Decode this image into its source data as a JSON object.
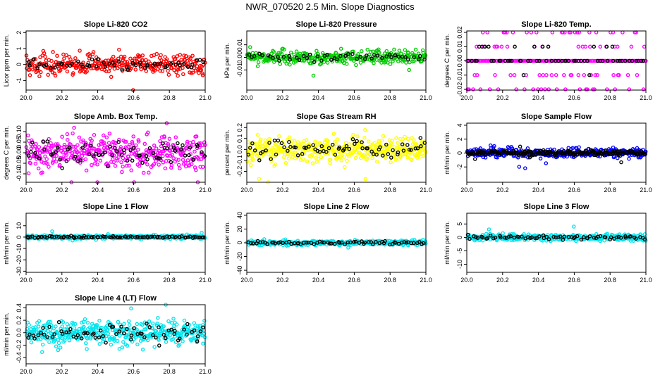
{
  "page_title": "NWR_070520  2.5 Min. Slope Diagnostics",
  "chart_data": [
    {
      "type": "scatter",
      "title": "Slope Li-820 CO2",
      "ylabel": "Licor ppm per min.",
      "xlim": [
        20.0,
        21.0
      ],
      "ylim": [
        -1.6,
        2.1
      ],
      "xticks": [
        "20.0",
        "20.2",
        "20.4",
        "20.6",
        "20.8",
        "21.0"
      ],
      "yticks": [
        "-1",
        "0",
        "1",
        "2"
      ],
      "series": [
        {
          "name": "all",
          "color": "#ff0000",
          "n": 330,
          "spread": 0.45
        },
        {
          "name": "selected",
          "color": "#000000",
          "n": 55,
          "spread": 0.22
        }
      ]
    },
    {
      "type": "scatter",
      "title": "Slope Li-820 Pressure",
      "ylabel": "kPa per min.",
      "xlim": [
        20.0,
        21.0
      ],
      "ylim": [
        -0.026,
        0.021
      ],
      "xticks": [
        "20.0",
        "20.2",
        "20.4",
        "20.6",
        "20.8",
        "21.0"
      ],
      "yticks": [
        "-0.01",
        "0.00",
        "0.01"
      ],
      "series": [
        {
          "name": "all",
          "color": "#00cc00",
          "n": 330,
          "spread": 0.0035
        },
        {
          "name": "selected",
          "color": "#000000",
          "n": 50,
          "spread": 0.0025
        }
      ]
    },
    {
      "type": "scatter",
      "title": "Slope Li-820 Temp.",
      "ylabel": "degrees C per min.",
      "xlim": [
        20.0,
        21.0
      ],
      "ylim": [
        -0.0205,
        0.021
      ],
      "xticks": [
        "20.0",
        "20.2",
        "20.4",
        "20.6",
        "20.8",
        "21.0"
      ],
      "yticks": [
        "-0.02",
        "-0.01",
        "0.00",
        "0.01",
        "0.02"
      ],
      "series": [
        {
          "name": "all",
          "color": "#ff00ff",
          "n": 300,
          "spread": 0.0,
          "levels": [
            -0.02,
            -0.01,
            0.0,
            0.01,
            0.02
          ]
        },
        {
          "name": "selected",
          "color": "#000000",
          "n": 60,
          "spread": 0.0,
          "levels": [
            -0.01,
            0.0,
            0.01
          ]
        }
      ]
    },
    {
      "type": "scatter",
      "title": "Slope Amb. Box Temp.",
      "ylabel": "degrees C per min.",
      "xlim": [
        20.0,
        21.0
      ],
      "ylim": [
        -0.14,
        0.14
      ],
      "xticks": [
        "20.0",
        "20.2",
        "20.4",
        "20.6",
        "20.8",
        "21.0"
      ],
      "yticks": [
        "-0.10",
        "-0.05",
        "0.00",
        "0.05",
        "0.10"
      ],
      "series": [
        {
          "name": "all",
          "color": "#ff00ff",
          "n": 420,
          "spread": 0.055
        },
        {
          "name": "selected",
          "color": "#000000",
          "n": 70,
          "spread": 0.04
        }
      ]
    },
    {
      "type": "scatter",
      "title": "Slope Gas Stream RH",
      "ylabel": "percent per min.",
      "xlim": [
        20.0,
        21.0
      ],
      "ylim": [
        -0.3,
        0.24
      ],
      "xticks": [
        "20.0",
        "20.2",
        "20.4",
        "20.6",
        "20.8",
        "21.0"
      ],
      "yticks": [
        "-0.2",
        "-0.1",
        "0.0",
        "0.1",
        "0.2"
      ],
      "series": [
        {
          "name": "all",
          "color": "#ffff00",
          "n": 420,
          "spread": 0.08
        },
        {
          "name": "selected",
          "color": "#000000",
          "n": 70,
          "spread": 0.06
        }
      ]
    },
    {
      "type": "scatter",
      "title": "Slope Sample Flow",
      "ylabel": "ml/min per min.",
      "xlim": [
        20.0,
        21.0
      ],
      "ylim": [
        -4.2,
        4.3
      ],
      "xticks": [
        "20.0",
        "20.2",
        "20.4",
        "20.6",
        "20.8",
        "21.0"
      ],
      "yticks": [
        "-2",
        "0",
        "2",
        "4"
      ],
      "series": [
        {
          "name": "all",
          "color": "#0000ff",
          "n": 360,
          "spread": 0.45
        },
        {
          "name": "selected",
          "color": "#000000",
          "n": 200,
          "spread": 0.25
        }
      ]
    },
    {
      "type": "scatter",
      "title": "Slope Line 1 Flow",
      "ylabel": "ml/min per min.",
      "xlim": [
        20.0,
        21.0
      ],
      "ylim": [
        -31,
        21
      ],
      "xticks": [
        "20.0",
        "20.2",
        "20.4",
        "20.6",
        "20.8",
        "21.0"
      ],
      "yticks": [
        "-30",
        "-20",
        "-10",
        "0",
        "10"
      ],
      "series": [
        {
          "name": "all",
          "color": "#00e5ee",
          "n": 360,
          "spread": 1.2
        },
        {
          "name": "selected",
          "color": "#000000",
          "n": 90,
          "spread": 0.6
        }
      ]
    },
    {
      "type": "scatter",
      "title": "Slope Line 2 Flow",
      "ylabel": "ml/min per min.",
      "xlim": [
        20.0,
        21.0
      ],
      "ylim": [
        -43,
        43
      ],
      "xticks": [
        "20.0",
        "20.2",
        "20.4",
        "20.6",
        "20.8",
        "21.0"
      ],
      "yticks": [
        "-40",
        "-20",
        "0",
        "20",
        "40"
      ],
      "series": [
        {
          "name": "all",
          "color": "#00e5ee",
          "n": 360,
          "spread": 2.5
        },
        {
          "name": "selected",
          "color": "#000000",
          "n": 70,
          "spread": 1.5
        }
      ]
    },
    {
      "type": "scatter",
      "title": "Slope Line 3 Flow",
      "ylabel": "ml/min per min.",
      "xlim": [
        20.0,
        21.0
      ],
      "ylim": [
        -13,
        9
      ],
      "xticks": [
        "20.0",
        "20.2",
        "20.4",
        "20.6",
        "20.8",
        "21.0"
      ],
      "yticks": [
        "-10",
        "-5",
        "0",
        "5"
      ],
      "series": [
        {
          "name": "all",
          "color": "#00e5ee",
          "n": 360,
          "spread": 0.8
        },
        {
          "name": "selected",
          "color": "#000000",
          "n": 70,
          "spread": 0.5
        }
      ]
    },
    {
      "type": "scatter",
      "title": "Slope Line 4 (LT) Flow",
      "ylabel": "ml/min per min.",
      "xlim": [
        20.0,
        21.0
      ],
      "ylim": [
        -0.5,
        0.45
      ],
      "xticks": [
        "20.0",
        "20.2",
        "20.4",
        "20.6",
        "20.8",
        "21.0"
      ],
      "yticks": [
        "-0.4",
        "-0.2",
        "0.0",
        "0.2",
        "0.4"
      ],
      "series": [
        {
          "name": "all",
          "color": "#00e5ee",
          "n": 420,
          "spread": 0.14
        },
        {
          "name": "selected",
          "color": "#000000",
          "n": 70,
          "spread": 0.11
        }
      ]
    }
  ]
}
